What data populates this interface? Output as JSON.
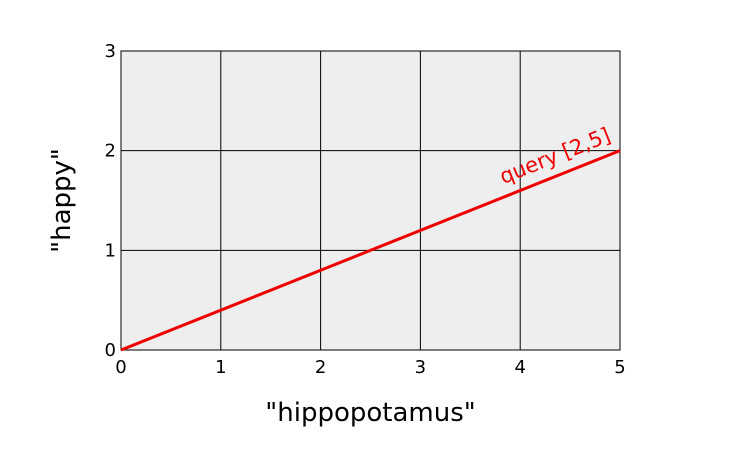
{
  "chart_data": {
    "type": "line",
    "title": "",
    "xlabel": "\"hippopotamus\"",
    "ylabel": "\"happy\"",
    "xlim": [
      0,
      5
    ],
    "ylim": [
      0,
      3
    ],
    "x_ticks": [
      0,
      1,
      2,
      3,
      4,
      5
    ],
    "y_ticks": [
      0,
      1,
      2,
      3
    ],
    "grid": true,
    "background": "#eeeeee",
    "series": [
      {
        "label_on_chart": "query [2,5]",
        "color": "#ee0000",
        "x": [
          0,
          5
        ],
        "y": [
          0,
          2
        ]
      }
    ]
  }
}
